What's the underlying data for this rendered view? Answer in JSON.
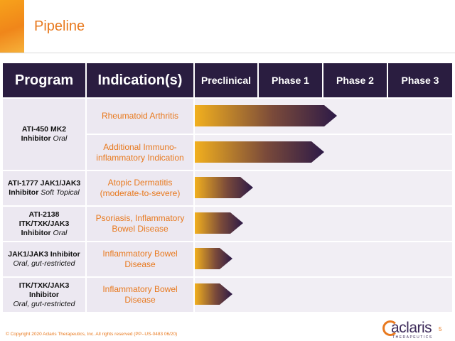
{
  "title": "Pipeline",
  "headers": {
    "program": "Program",
    "indication": "Indication(s)",
    "preclinical": "Preclinical",
    "phase1": "Phase 1",
    "phase2": "Phase 2",
    "phase3": "Phase 3"
  },
  "programs": [
    {
      "name": "ATI-450 MK2",
      "name2": "Inhibitor",
      "route": "Oral"
    },
    {
      "name": "ATI-1777 JAK1/JAK3",
      "name2": "Inhibitor",
      "route": "Soft Topical"
    },
    {
      "name": "ATI-2138",
      "name2": "ITK/TXK/JAK3",
      "name3": "Inhibitor",
      "route": "Oral"
    },
    {
      "name": "JAK1/JAK3 Inhibitor",
      "route": "Oral, gut-restricted"
    },
    {
      "name": "ITK/TXK/JAK3",
      "name2": "Inhibitor",
      "route": "Oral, gut-restricted"
    }
  ],
  "indications": [
    {
      "text": "Rheumatoid Arthritis",
      "progress_phase_units": 2.2
    },
    {
      "text": "Additional Immuno-inflammatory Indication",
      "progress_phase_units": 2.0
    },
    {
      "text": "Atopic Dermatitis (moderate-to-severe)",
      "progress_phase_units": 0.9
    },
    {
      "text": "Psoriasis, Inflammatory Bowel Disease",
      "progress_phase_units": 0.75
    },
    {
      "text": "Inflammatory Bowel Disease",
      "progress_phase_units": 0.58
    },
    {
      "text": "Inflammatory Bowel Disease",
      "progress_phase_units": 0.58
    }
  ],
  "colors": {
    "header_bg": "#2a1d40",
    "accent": "#e8791e",
    "bar_start": "#f2b01e",
    "bar_end": "#2d1a47",
    "row_bg": "#ece8f1"
  },
  "footer": "© Copyright 2020 Aclaris Therapeutics, Inc. All rights reserved (PP--US-0483 06/20)",
  "logo_text": "aclaris",
  "logo_sub": "THERAPEUTICS",
  "page_number": "5"
}
